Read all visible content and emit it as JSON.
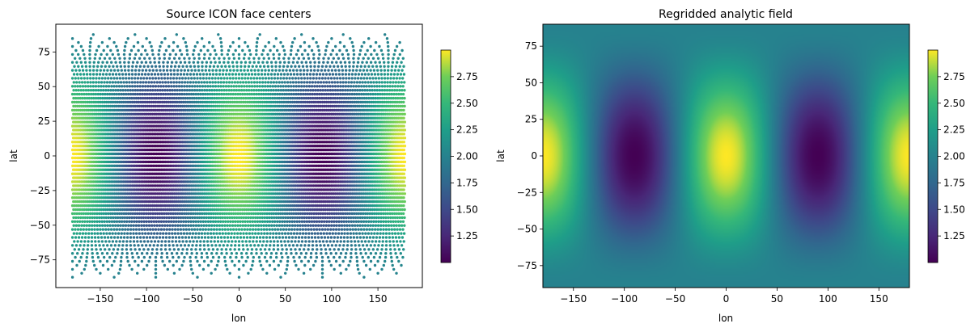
{
  "chart_data": [
    {
      "type": "scatter",
      "title": "Source ICON face centers",
      "xlabel": "lon",
      "ylabel": "lat",
      "xlim": [
        -198,
        198
      ],
      "ylim": [
        -95,
        95
      ],
      "xticks": [
        -150,
        -100,
        -50,
        0,
        50,
        100,
        150
      ],
      "yticks": [
        -75,
        -50,
        -25,
        0,
        25,
        50,
        75
      ],
      "point_grid": {
        "lon_range": [
          -180,
          180
        ],
        "lat_range": [
          -89,
          89
        ]
      },
      "field": {
        "expression": "2 + cos(lat)^2 * cos(2*lon)",
        "vmin": 1.0,
        "vmax": 3.0
      },
      "colorbar": {
        "ticks": [
          1.25,
          1.5,
          1.75,
          2.0,
          2.25,
          2.5,
          2.75
        ],
        "tick_labels": [
          "1.25",
          "1.50",
          "1.75",
          "2.00",
          "2.25",
          "2.50",
          "2.75"
        ],
        "colormap": "viridis"
      }
    },
    {
      "type": "heatmap",
      "title": "Regridded analytic field",
      "xlabel": "lon",
      "ylabel": "lat",
      "xlim": [
        -180,
        180
      ],
      "ylim": [
        -90,
        90
      ],
      "xticks": [
        -150,
        -100,
        -50,
        0,
        50,
        100,
        150
      ],
      "yticks": [
        -75,
        -50,
        -25,
        0,
        25,
        50,
        75
      ],
      "field": {
        "expression": "2 + cos(lat)^2 * cos(2*lon)",
        "vmin": 1.0,
        "vmax": 3.0
      },
      "colorbar": {
        "ticks": [
          1.25,
          1.5,
          1.75,
          2.0,
          2.25,
          2.5,
          2.75
        ],
        "tick_labels": [
          "1.25",
          "1.50",
          "1.75",
          "2.00",
          "2.25",
          "2.50",
          "2.75"
        ],
        "colormap": "viridis"
      }
    }
  ]
}
